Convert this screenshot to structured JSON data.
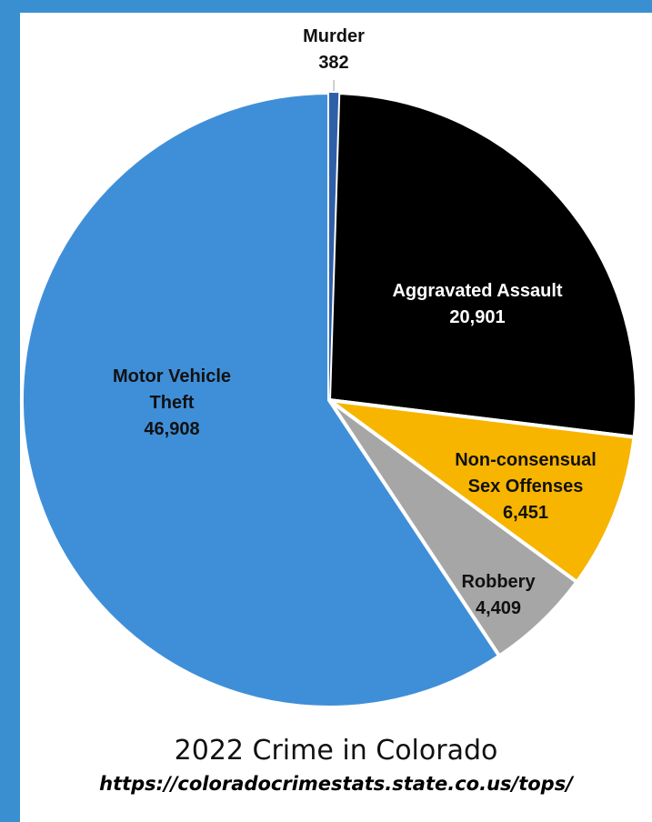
{
  "chart_data": {
    "type": "pie",
    "title": "2022 Crime in Colorado",
    "source": "https://coloradocrimestats.state.co.us/tops/",
    "slices": [
      {
        "label_lines": [
          "Murder"
        ],
        "value": 382,
        "value_label": "382",
        "color": "#ffffff"
      },
      {
        "label_lines": [
          "Aggravated Assault"
        ],
        "value": 20901,
        "value_label": "20,901",
        "color": "#000000"
      },
      {
        "label_lines": [
          "Non-consensual",
          "Sex Offenses"
        ],
        "value": 6451,
        "value_label": "6,451",
        "color": "#f7b500"
      },
      {
        "label_lines": [
          "Robbery"
        ],
        "value": 4409,
        "value_label": "4,409",
        "color": "#a6a6a6"
      },
      {
        "label_lines": [
          "Motor Vehicle",
          "Theft"
        ],
        "value": 46908,
        "value_label": "46,908",
        "color": "#3f8fd8"
      }
    ],
    "label_colors": [
      "#111111",
      "#ffffff",
      "#111111",
      "#111111",
      "#111111"
    ]
  },
  "border_color": "#3a8fd0"
}
